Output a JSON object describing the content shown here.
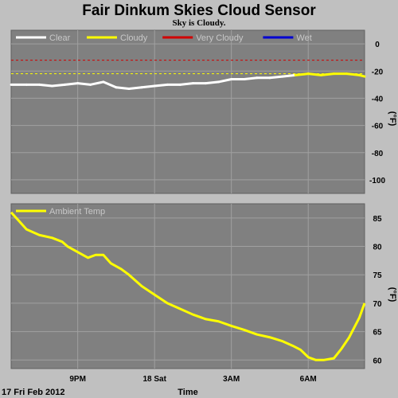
{
  "title": "Fair Dinkum Skies Cloud Sensor",
  "subtitle": "Sky is Cloudy.",
  "footer": {
    "date_label": "17 Fri Feb 2012",
    "xlabel": "Time"
  },
  "colors": {
    "plot_bg": "#808080",
    "grid": "#a0a0a0",
    "sky_series": "#ffffff",
    "sky_cloudy": "#ffff00",
    "ambient": "#ffff00",
    "very_cloudy_line": "#d00000"
  },
  "chart_data": [
    {
      "type": "line",
      "name": "sky-temperature",
      "legend": [
        {
          "label": "Clear",
          "color": "#ffffff"
        },
        {
          "label": "Cloudy",
          "color": "#ffff00"
        },
        {
          "label": "Very Cloudy",
          "color": "#d00000"
        },
        {
          "label": "Wet",
          "color": "#0000d0"
        }
      ],
      "ylabel": "(°F)",
      "ylim": [
        -110,
        10
      ],
      "yticks": [
        0,
        -20,
        -40,
        -60,
        -80,
        -100
      ],
      "xticks": [
        "9PM",
        "18 Sat",
        "3AM",
        "6AM"
      ],
      "x_tick_hours": [
        21,
        24,
        27,
        30
      ],
      "x_range_hours": [
        18.4,
        32.2
      ],
      "thresholds": [
        {
          "label": "Very Cloudy",
          "value": -12,
          "color": "#d00000"
        },
        {
          "label": "Cloudy",
          "value": -22,
          "color": "#ffff00"
        }
      ],
      "series": [
        {
          "name": "Sky Temp",
          "x": [
            18.4,
            19.0,
            19.5,
            20.0,
            20.5,
            21.0,
            21.5,
            22.0,
            22.5,
            23.0,
            23.5,
            24.0,
            24.5,
            25.0,
            25.5,
            26.0,
            26.5,
            27.0,
            27.5,
            28.0,
            28.5,
            29.0,
            29.5,
            30.0,
            30.5,
            31.0,
            31.5,
            32.0,
            32.2
          ],
          "y": [
            -30,
            -30,
            -30,
            -31,
            -30,
            -29,
            -30,
            -28,
            -32,
            -33,
            -32,
            -31,
            -30,
            -30,
            -29,
            -29,
            -28,
            -26,
            -26,
            -25,
            -25,
            -24,
            -23,
            -22,
            -23,
            -22,
            -22,
            -23,
            -24
          ],
          "cloudy_above": -24
        }
      ]
    },
    {
      "type": "line",
      "name": "ambient-temperature",
      "legend": [
        {
          "label": "Ambient Temp",
          "color": "#ffff00"
        }
      ],
      "ylabel": "(°F)",
      "ylim": [
        58.5,
        87.5
      ],
      "yticks": [
        85,
        80,
        75,
        70,
        65,
        60
      ],
      "xticks": [
        "9PM",
        "18 Sat",
        "3AM",
        "6AM"
      ],
      "x_tick_hours": [
        21,
        24,
        27,
        30
      ],
      "x_range_hours": [
        18.4,
        32.2
      ],
      "series": [
        {
          "name": "Ambient Temp",
          "x": [
            18.4,
            18.7,
            19.0,
            19.5,
            20.0,
            20.4,
            20.6,
            21.0,
            21.4,
            21.7,
            22.0,
            22.3,
            22.7,
            23.0,
            23.5,
            24.0,
            24.5,
            25.0,
            25.5,
            26.0,
            26.5,
            27.0,
            27.5,
            28.0,
            28.5,
            29.0,
            29.4,
            29.7,
            30.0,
            30.3,
            30.6,
            31.0,
            31.3,
            31.6,
            32.0,
            32.2
          ],
          "y": [
            86,
            84.5,
            83,
            82,
            81.5,
            80.8,
            80,
            79,
            78,
            78.5,
            78.5,
            77,
            76,
            75,
            73,
            71.5,
            70,
            69,
            68,
            67.2,
            66.8,
            66,
            65.3,
            64.5,
            64,
            63.3,
            62.5,
            61.8,
            60.5,
            60,
            60,
            60.3,
            62,
            64,
            67.5,
            70
          ]
        }
      ]
    }
  ]
}
